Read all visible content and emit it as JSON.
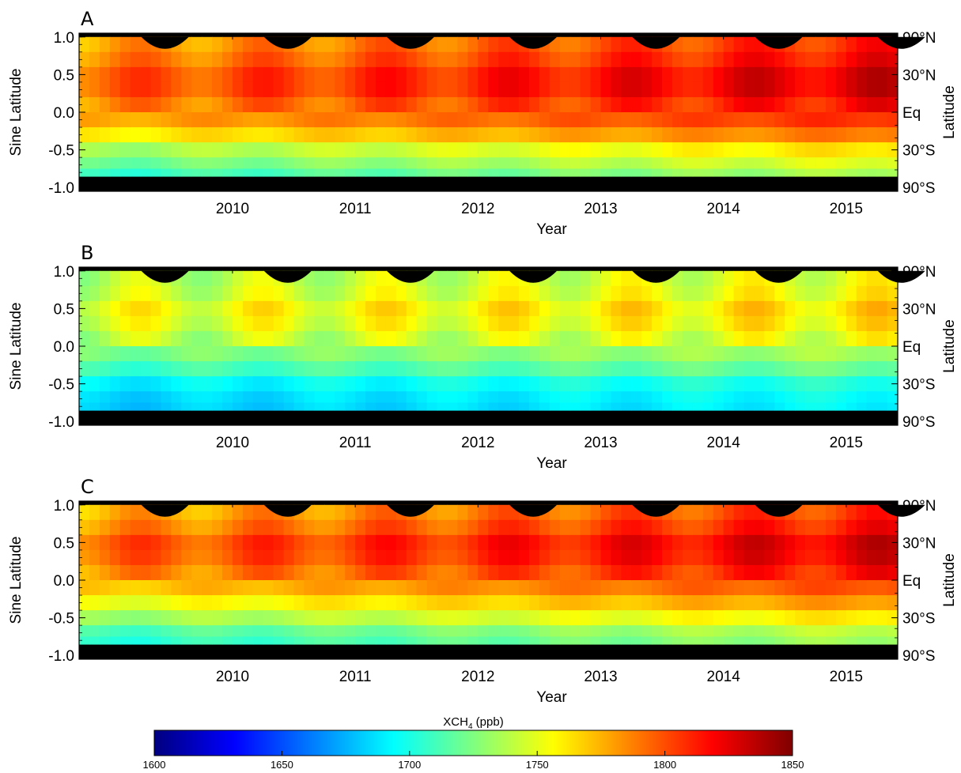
{
  "chart_data": {
    "type": "heatmap",
    "colorbar": {
      "title_main": "XCH",
      "title_sub": "4",
      "title_unit": " (ppb)",
      "min": 1600,
      "max": 1850,
      "ticks": [
        "1600",
        "1650",
        "1700",
        "1750",
        "1800",
        "1850"
      ],
      "colors": [
        "#00007f",
        "#0000ff",
        "#007fff",
        "#00ffff",
        "#7fff7f",
        "#ffff00",
        "#ff7f00",
        "#ff0000",
        "#7f0000"
      ]
    },
    "x_range": [
      2009.25,
      2015.92
    ],
    "y_range": [
      -1.05,
      1.05
    ],
    "data_y_range": [
      -0.85,
      1.0
    ],
    "x_ticks": [
      "2010",
      "2011",
      "2012",
      "2013",
      "2014",
      "2015"
    ],
    "y_ticks_left": [
      "1.0",
      "0.5",
      "0.0",
      "-0.5",
      "-1.0"
    ],
    "y_ticks_right": [
      "90°N",
      "30°N",
      "Eq",
      "30°S",
      "90°S"
    ],
    "panels": [
      {
        "label": "A",
        "xlabel": "Year",
        "ylabel": "Sine Latitude",
        "ylabel_right": "Latitude",
        "sin_lat": [
          0.9,
          0.7,
          0.5,
          0.3,
          0.1,
          -0.1,
          -0.3,
          -0.5,
          -0.7,
          -0.8
        ],
        "base_ppb": [
          1778,
          1785,
          1795,
          1795,
          1784,
          1776,
          1758,
          1732,
          1718,
          1705
        ],
        "trend_ppb_per_year": 5,
        "season_amplitude_ppb": 11
      },
      {
        "label": "B",
        "xlabel": "Year",
        "ylabel": "Sine Latitude",
        "ylabel_right": "Latitude",
        "sin_lat": [
          0.9,
          0.7,
          0.5,
          0.3,
          0.1,
          -0.1,
          -0.3,
          -0.5,
          -0.7,
          -0.8
        ],
        "base_ppb": [
          1738,
          1742,
          1752,
          1747,
          1738,
          1722,
          1708,
          1690,
          1683,
          1680
        ],
        "trend_ppb_per_year": 2,
        "season_amplitude_ppb": 13
      },
      {
        "label": "C",
        "xlabel": "Year",
        "ylabel": "Sine Latitude",
        "ylabel_right": "Latitude",
        "sin_lat": [
          0.9,
          0.7,
          0.5,
          0.3,
          0.1,
          -0.1,
          -0.3,
          -0.5,
          -0.7,
          -0.8
        ],
        "base_ppb": [
          1774,
          1782,
          1795,
          1792,
          1782,
          1768,
          1750,
          1730,
          1710,
          1702
        ],
        "trend_ppb_per_year": 5,
        "season_amplitude_ppb": 11
      }
    ]
  }
}
